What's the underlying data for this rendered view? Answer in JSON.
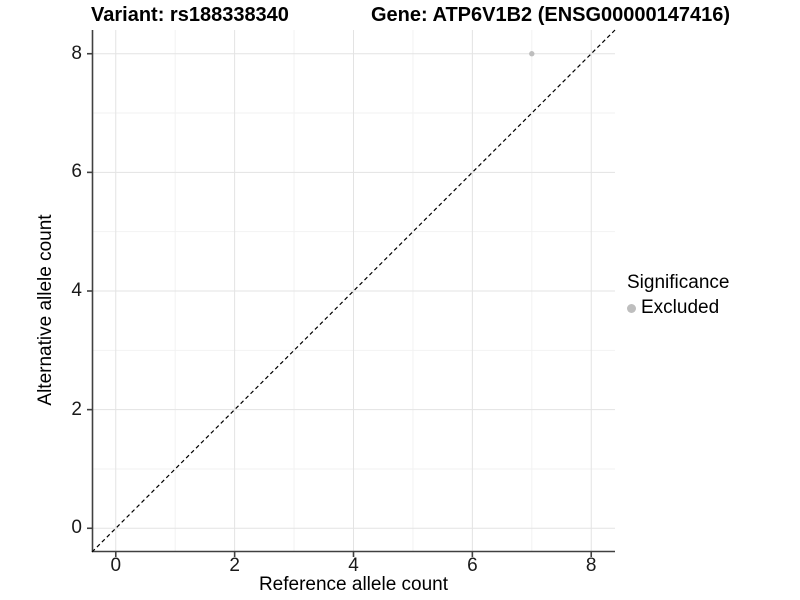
{
  "chart_data": {
    "type": "scatter",
    "titles": {
      "left": "Variant: rs188338340",
      "right": "Gene: ATP6V1B2 (ENSG00000147416)"
    },
    "xlabel": "Reference allele count",
    "ylabel": "Alternative allele count",
    "xlim": [
      -0.4,
      8.4
    ],
    "ylim": [
      -0.4,
      8.4
    ],
    "x_ticks": [
      0,
      2,
      4,
      6,
      8
    ],
    "y_ticks": [
      0,
      2,
      4,
      6,
      8
    ],
    "x_minor_ticks": [
      1,
      3,
      5,
      7
    ],
    "y_minor_ticks": [
      1,
      3,
      5,
      7
    ],
    "grid": "major+minor",
    "reference_line": {
      "type": "identity",
      "slope": 1,
      "intercept": 0,
      "style": "dashed",
      "color": "#000000"
    },
    "series": [
      {
        "name": "Excluded",
        "marker": "circle",
        "color": "#bebebe",
        "points": [
          [
            7,
            8
          ]
        ]
      }
    ],
    "legend": {
      "title": "Significance",
      "position": "right",
      "entries": [
        {
          "label": "Excluded",
          "color": "#bebebe"
        }
      ]
    }
  },
  "colors": {
    "background": "#ffffff",
    "grid_major": "#e3e3e3",
    "grid_minor": "#f2f2f2",
    "axis_line": "#404040",
    "tick_mark": "#404040",
    "point": "#bebebe",
    "reference_line": "#000000",
    "text": "#000000"
  }
}
